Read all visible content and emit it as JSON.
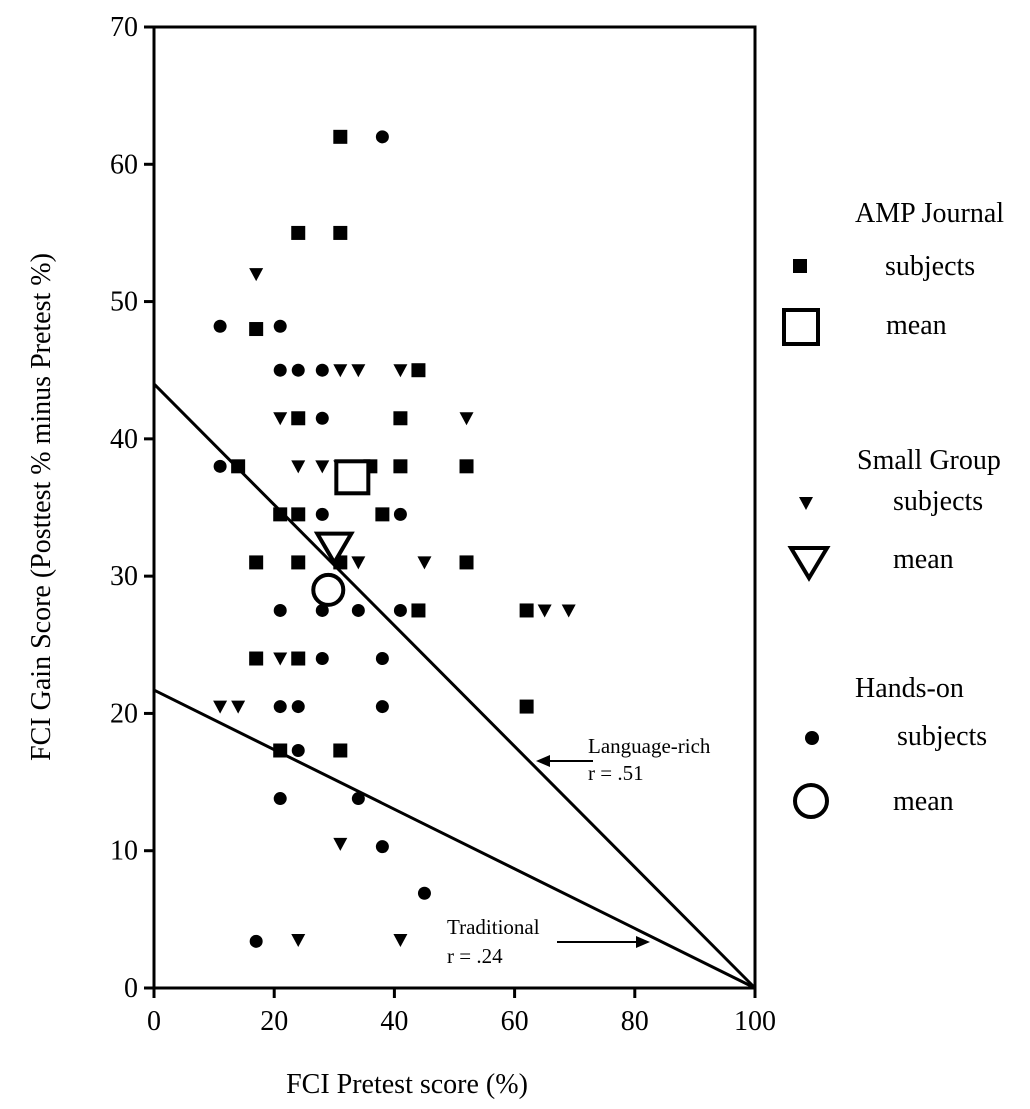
{
  "chart_data": {
    "type": "scatter",
    "xlabel": "FCI Pretest score (%)",
    "ylabel": "FCI Gain Score (Posttest % minus Pretest %)",
    "xlim": [
      0,
      100
    ],
    "ylim": [
      0,
      70
    ],
    "x_ticks": [
      "0",
      "20",
      "40",
      "60",
      "80",
      "100"
    ],
    "y_ticks": [
      "0",
      "10",
      "20",
      "30",
      "40",
      "50",
      "60",
      "70"
    ],
    "grid": false,
    "legend_position": "right",
    "series": [
      {
        "name": "AMP Journal",
        "subjects_label": "subjects",
        "mean_label": "mean",
        "marker": "square",
        "points": [
          [
            31,
            62
          ],
          [
            24,
            55
          ],
          [
            31,
            55
          ],
          [
            17,
            48
          ],
          [
            44,
            45
          ],
          [
            24,
            41.5
          ],
          [
            41,
            41.5
          ],
          [
            14,
            38
          ],
          [
            36,
            38
          ],
          [
            41,
            38
          ],
          [
            52,
            38
          ],
          [
            21,
            34.5
          ],
          [
            24,
            34.5
          ],
          [
            38,
            34.5
          ],
          [
            17,
            31
          ],
          [
            24,
            31
          ],
          [
            31,
            31
          ],
          [
            52,
            31
          ],
          [
            44,
            27.5
          ],
          [
            62,
            27.5
          ],
          [
            17,
            24
          ],
          [
            24,
            24
          ],
          [
            62,
            20.5
          ],
          [
            21,
            17.3
          ],
          [
            31,
            17.3
          ]
        ],
        "mean": [
          33,
          37.2
        ]
      },
      {
        "name": "Small Group",
        "subjects_label": "subjects",
        "mean_label": "mean",
        "marker": "triangle-down",
        "points": [
          [
            17,
            52
          ],
          [
            31,
            45
          ],
          [
            34,
            45
          ],
          [
            41,
            45
          ],
          [
            21,
            41.5
          ],
          [
            52,
            41.5
          ],
          [
            24,
            38
          ],
          [
            28,
            38
          ],
          [
            31,
            38
          ],
          [
            34,
            31
          ],
          [
            45,
            31
          ],
          [
            65,
            27.5
          ],
          [
            69,
            27.5
          ],
          [
            21,
            24
          ],
          [
            11,
            20.5
          ],
          [
            14,
            20.5
          ],
          [
            31,
            10.5
          ],
          [
            24,
            3.5
          ],
          [
            41,
            3.5
          ]
        ],
        "mean": [
          30,
          32
        ]
      },
      {
        "name": "Hands-on",
        "subjects_label": "subjects",
        "mean_label": "mean",
        "marker": "circle",
        "points": [
          [
            38,
            62
          ],
          [
            11,
            48.2
          ],
          [
            21,
            48.2
          ],
          [
            21,
            45
          ],
          [
            24,
            45
          ],
          [
            28,
            45
          ],
          [
            28,
            41.5
          ],
          [
            11,
            38
          ],
          [
            28,
            34.5
          ],
          [
            41,
            34.5
          ],
          [
            21,
            27.5
          ],
          [
            28,
            27.5
          ],
          [
            34,
            27.5
          ],
          [
            41,
            27.5
          ],
          [
            28,
            24
          ],
          [
            38,
            24
          ],
          [
            21,
            20.5
          ],
          [
            24,
            20.5
          ],
          [
            38,
            20.5
          ],
          [
            24,
            17.3
          ],
          [
            21,
            13.8
          ],
          [
            34,
            13.8
          ],
          [
            38,
            10.3
          ],
          [
            45,
            6.9
          ],
          [
            17,
            3.4
          ]
        ],
        "mean": [
          29,
          29
        ]
      }
    ],
    "lines": [
      {
        "name": "Language-rich",
        "r_label": "r = .51",
        "x": [
          0,
          100
        ],
        "y": [
          44,
          0
        ]
      },
      {
        "name": "Traditional",
        "r_label": "r = .24",
        "x": [
          0,
          100
        ],
        "y": [
          21.7,
          0
        ]
      }
    ]
  }
}
